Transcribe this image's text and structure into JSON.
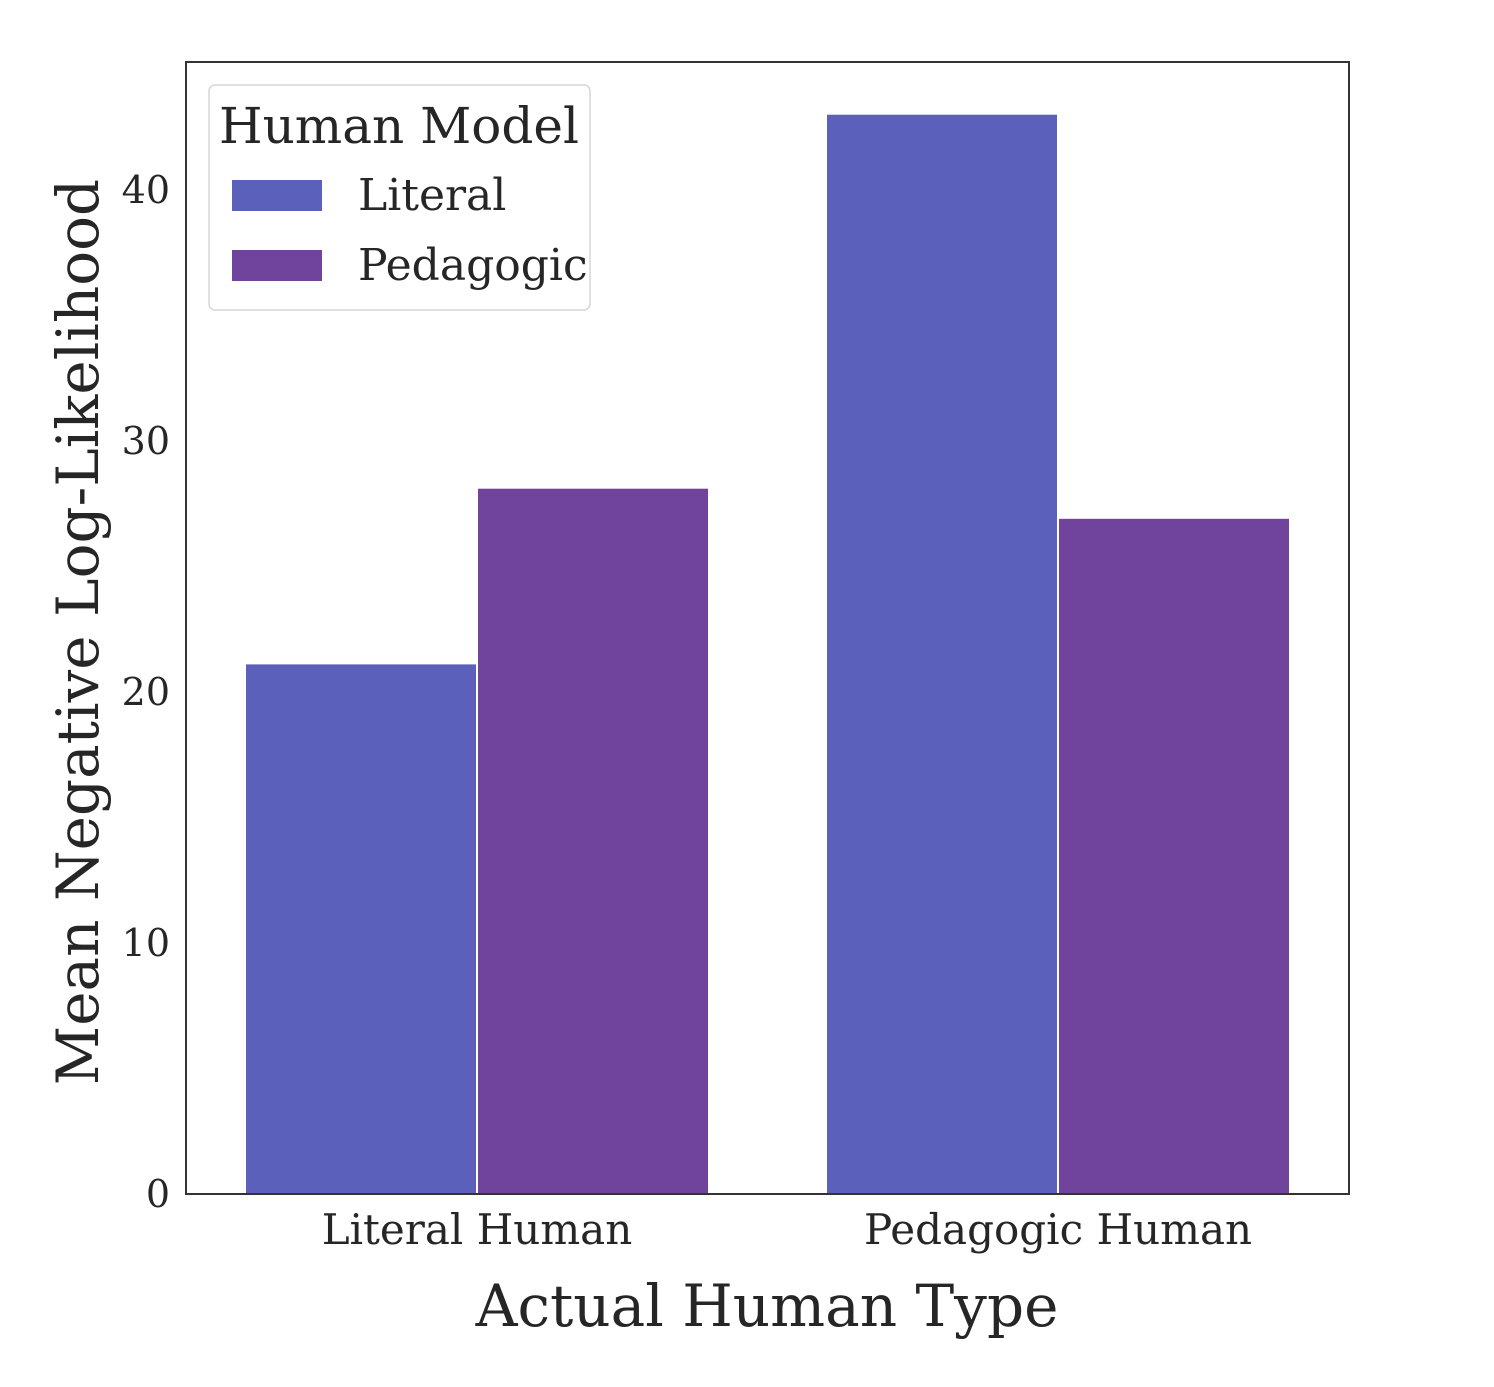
{
  "chart_data": {
    "type": "bar",
    "categories": [
      "Literal Human",
      "Pedagogic Human"
    ],
    "series": [
      {
        "name": "Literal",
        "values": [
          21.1,
          43.0
        ],
        "color": "#5b61ba"
      },
      {
        "name": "Pedagogic",
        "values": [
          28.1,
          26.9
        ],
        "color": "#70449c"
      }
    ],
    "xlabel": "Actual Human Type",
    "ylabel": "Mean Negative Log-Likelihood",
    "ylim": [
      0,
      45.1
    ],
    "yticks": [
      0,
      10,
      20,
      30,
      40
    ],
    "grid": false,
    "legend": {
      "title": "Human Model",
      "placement": "top-left"
    }
  }
}
